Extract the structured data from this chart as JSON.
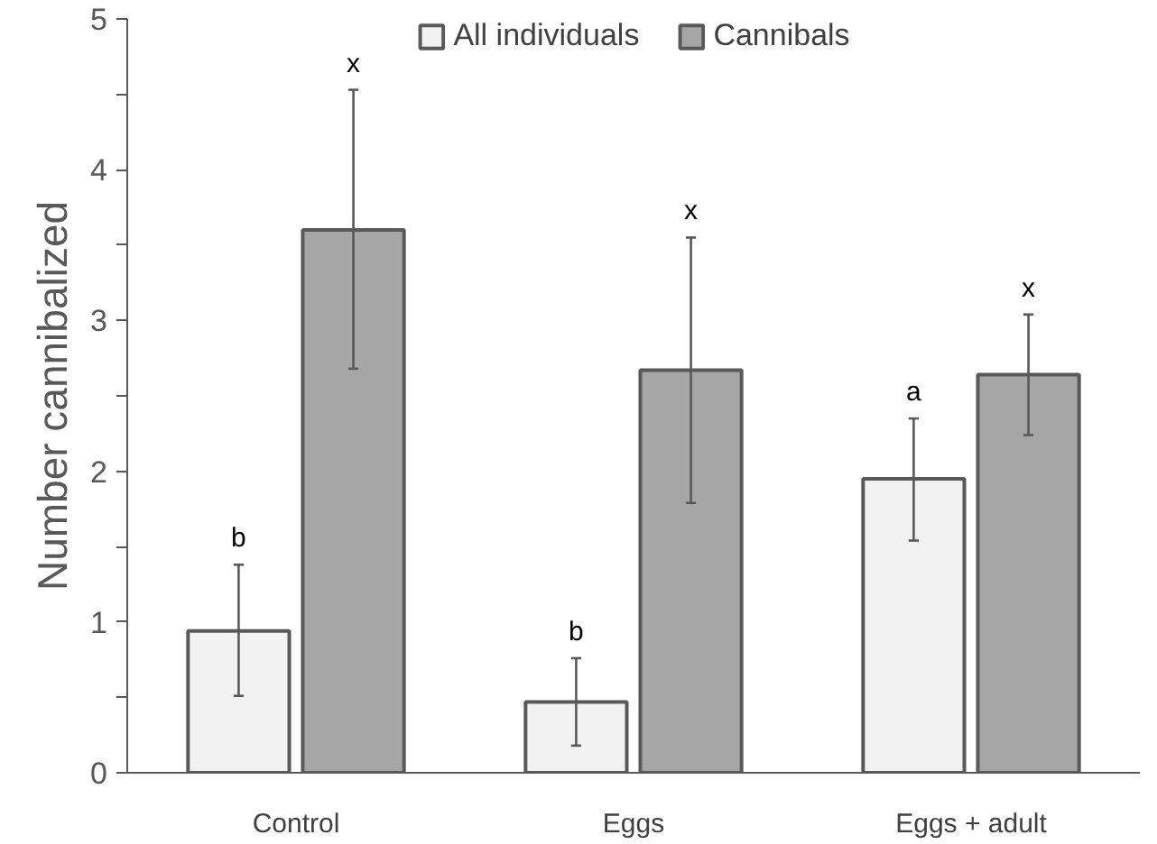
{
  "chart_data": {
    "type": "bar",
    "ylabel": "Number cannibalized",
    "categories": [
      "Control",
      "Eggs",
      "Eggs + adult"
    ],
    "series": [
      {
        "name": "All individuals",
        "color": "#f2f2f2",
        "values": [
          0.94,
          0.47,
          1.95
        ],
        "errors": [
          [
            0.51,
            1.38
          ],
          [
            0.18,
            0.76
          ],
          [
            1.54,
            2.35
          ]
        ]
      },
      {
        "name": "Cannibals",
        "color": "#a6a6a6",
        "values": [
          3.6,
          2.67,
          2.64
        ],
        "errors": [
          [
            2.68,
            4.53
          ],
          [
            1.79,
            3.55
          ],
          [
            2.24,
            3.04
          ]
        ]
      }
    ],
    "ylim": [
      0,
      5
    ],
    "yticks": [
      0,
      {
        "value": 0.5,
        "label": null
      },
      1,
      {
        "value": 1.5,
        "label": null
      },
      2,
      {
        "value": 2.5,
        "label": null
      },
      3,
      {
        "value": 3.5,
        "label": null
      },
      4,
      {
        "value": 4.5,
        "label": null
      },
      5
    ],
    "grid": false,
    "legend": "top",
    "annotations": [
      "b",
      "x",
      "b",
      "x",
      "a",
      "x"
    ]
  }
}
